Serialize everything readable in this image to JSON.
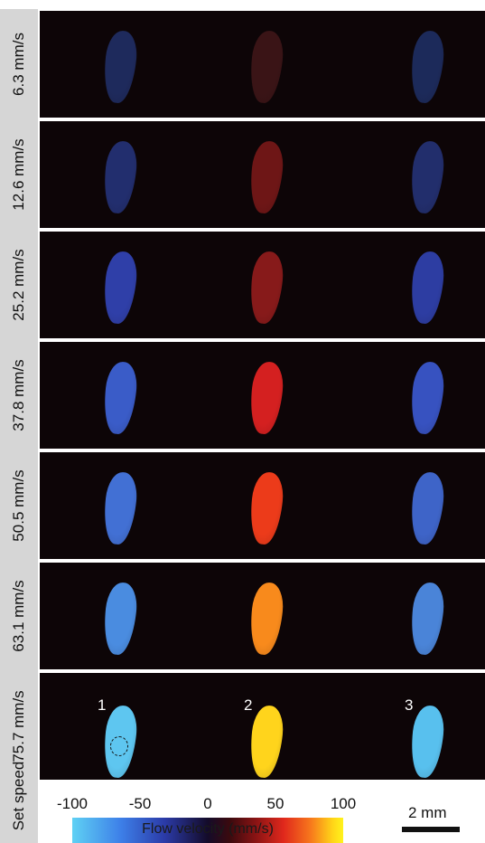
{
  "rows": [
    {
      "speed": "6.3 mm/s",
      "colors": [
        "#1e2a5c",
        "#3a1416",
        "#1c2a5a"
      ]
    },
    {
      "speed": "12.6 mm/s",
      "colors": [
        "#222e6e",
        "#6e1616",
        "#222e6c"
      ]
    },
    {
      "speed": "25.2 mm/s",
      "colors": [
        "#2f3fa8",
        "#871a1a",
        "#2d3da2"
      ]
    },
    {
      "speed": "37.8 mm/s",
      "colors": [
        "#3a5cc8",
        "#d42020",
        "#3752c0"
      ]
    },
    {
      "speed": "50.5 mm/s",
      "colors": [
        "#4270d4",
        "#ec3b1a",
        "#3e64c8"
      ]
    },
    {
      "speed": "63.1 mm/s",
      "colors": [
        "#4a8ce0",
        "#f88a1c",
        "#4a84d8"
      ]
    },
    {
      "speed": "75.7 mm/s",
      "colors": [
        "#5ec6f0",
        "#ffd41c",
        "#58c0ee"
      ]
    }
  ],
  "vessel_labels": [
    "1",
    "2",
    "3"
  ],
  "set_speed_label": "Set speed",
  "colorbar": {
    "label": "Flow velocity (mm/s)",
    "ticks": [
      "-100",
      "-50",
      "0",
      "50",
      "100"
    ]
  },
  "scale_bar_label": "2 mm"
}
